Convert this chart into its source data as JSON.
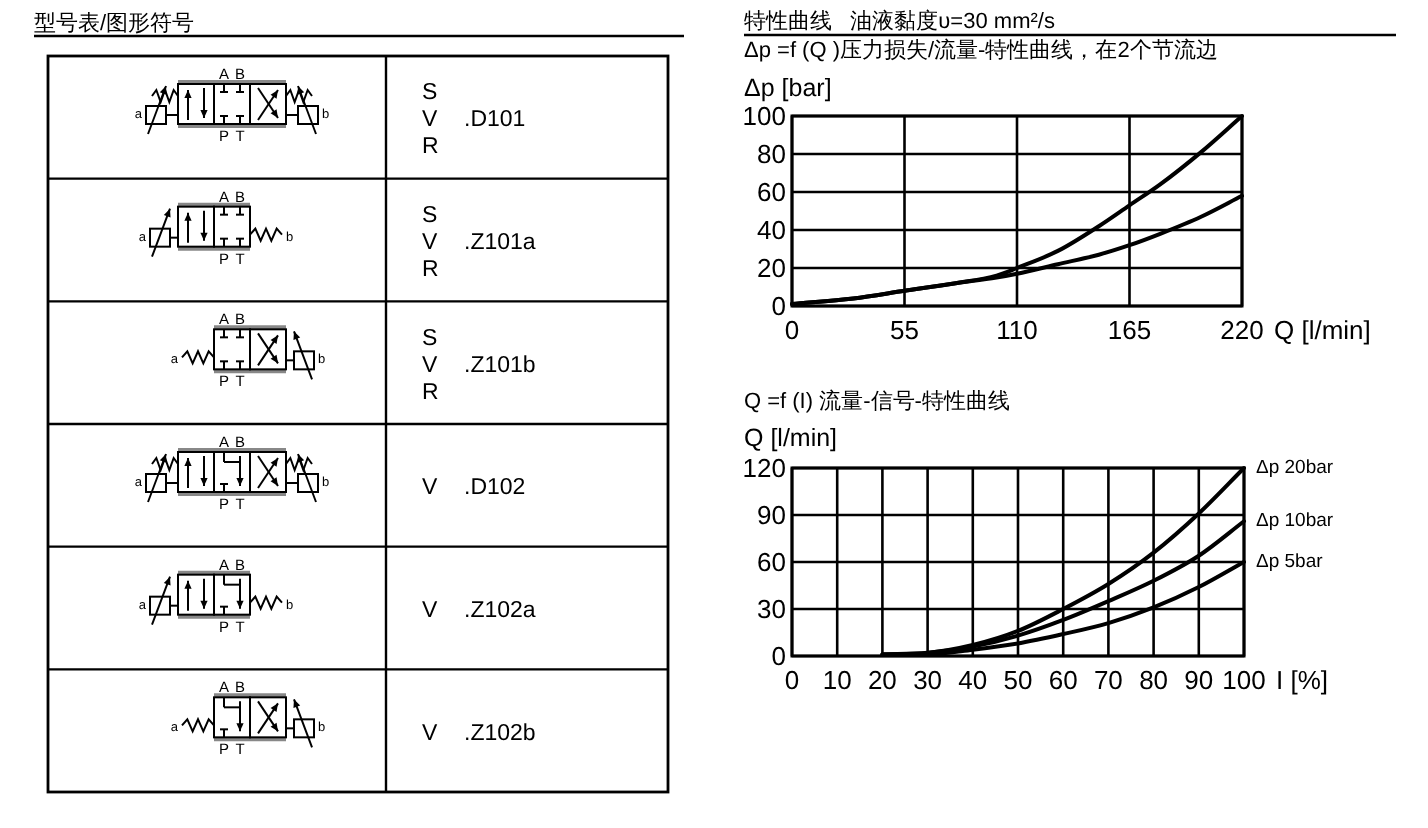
{
  "chart_data": [
    {
      "type": "other",
      "title": "型号表/图形符号",
      "annotations": [
        "S\nV\nR",
        ".D101",
        "A",
        "B",
        "P",
        "T",
        "a",
        "b",
        "S\nV\nR",
        ".Z101a",
        "A",
        "B",
        "P",
        "T",
        "a",
        "b",
        "S\nV\nR",
        ".Z101b",
        "A",
        "B",
        "P",
        "T",
        "a",
        "b",
        "V",
        ".D102",
        "A",
        "B",
        "P",
        "T",
        "a",
        "b",
        "V",
        ".Z102a",
        "A",
        "B",
        "P",
        "T",
        "a",
        "b",
        "V",
        ".Z102b",
        "A",
        "B",
        "P",
        "T",
        "a",
        "b"
      ]
    },
    {
      "type": "line",
      "title": "特性曲线   油液黏度υ=30 mm²/s",
      "subtitle": "Δp =f (Q )压力损失/流量-特性曲线，在2个节流边",
      "xlabel": "Q [l/min]",
      "ylabel": "Δp [bar]",
      "x": [
        0,
        30,
        55,
        80,
        100,
        110,
        130,
        150,
        165,
        180,
        200,
        220
      ],
      "series": [
        {
          "color": "#000000",
          "values": [
            1,
            4,
            8,
            12,
            16,
            20,
            29,
            42,
            53,
            64,
            81,
            100
          ]
        },
        {
          "color": "#000000",
          "values": [
            1,
            4,
            8,
            12,
            15,
            17,
            22,
            27,
            32,
            38,
            47,
            58
          ]
        }
      ],
      "xlim": [
        0,
        220
      ],
      "ylim": [
        0,
        100
      ],
      "xticks": [
        0,
        55,
        110,
        165,
        220
      ],
      "yticks": [
        0,
        20,
        40,
        60,
        80,
        100
      ],
      "grid": true
    },
    {
      "type": "line",
      "title": "Q =f (I) 流量-信号-特性曲线",
      "xlabel": "I [%]",
      "ylabel": "Q [l/min]",
      "x": [
        20,
        30,
        40,
        50,
        60,
        70,
        80,
        90,
        100
      ],
      "series": [
        {
          "name": "Δp 20bar",
          "color": "#000000",
          "values": [
            1,
            2,
            7,
            16,
            30,
            46,
            66,
            91,
            120
          ]
        },
        {
          "name": "Δp 10bar",
          "color": "#000000",
          "values": [
            1,
            2,
            6,
            13,
            23,
            35,
            48,
            64,
            86
          ]
        },
        {
          "name": "Δp 5bar",
          "color": "#000000",
          "values": [
            1,
            1,
            4,
            8,
            14,
            21,
            31,
            44,
            60
          ]
        }
      ],
      "xlim": [
        0,
        100
      ],
      "ylim": [
        0,
        120
      ],
      "xticks": [
        0,
        10,
        20,
        30,
        40,
        50,
        60,
        70,
        80,
        90,
        100
      ],
      "yticks": [
        0,
        30,
        60,
        90,
        120
      ],
      "grid": true
    }
  ]
}
